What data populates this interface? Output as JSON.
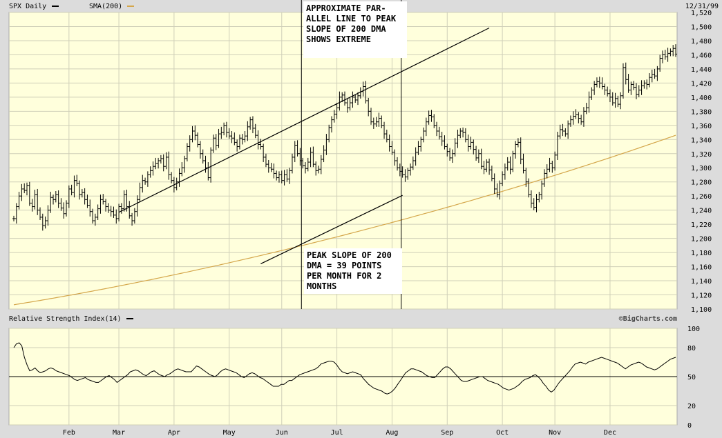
{
  "chart_data": {
    "type": "ohlc",
    "header": {
      "symbol_label": "SPX Daily",
      "sma_label": "SMA(200)",
      "date_label": "12/31/99"
    },
    "price_axis": {
      "ylim": [
        1100,
        1520
      ],
      "ticks": [
        "1,520",
        "1,500",
        "1,480",
        "1,460",
        "1,440",
        "1,420",
        "1,400",
        "1,380",
        "1,360",
        "1,340",
        "1,320",
        "1,300",
        "1,280",
        "1,260",
        "1,240",
        "1,220",
        "1,200",
        "1,180",
        "1,160",
        "1,140",
        "1,120",
        "1,100"
      ]
    },
    "x_axis": {
      "months": [
        "Feb",
        "Mar",
        "Apr",
        "May",
        "Jun",
        "Jul",
        "Aug",
        "Sep",
        "Oct",
        "Nov",
        "Dec"
      ],
      "month_day_index": [
        21,
        40,
        61,
        82,
        102,
        123,
        144,
        165,
        186,
        206,
        227
      ]
    },
    "colors": {
      "panel_bg": "#ffffdc",
      "grid": "#cfcfb8",
      "bar": "#000000",
      "sma": "#d4a64a",
      "frame": "#dcdcdc"
    },
    "series": [
      {
        "name": "SPX Daily",
        "kind": "ohlc_close",
        "values": [
          1228,
          1245,
          1260,
          1270,
          1268,
          1275,
          1250,
          1245,
          1262,
          1240,
          1230,
          1218,
          1225,
          1240,
          1258,
          1255,
          1262,
          1250,
          1243,
          1235,
          1250,
          1270,
          1265,
          1282,
          1278,
          1262,
          1265,
          1255,
          1247,
          1238,
          1225,
          1230,
          1242,
          1255,
          1252,
          1245,
          1240,
          1238,
          1233,
          1228,
          1245,
          1242,
          1262,
          1245,
          1232,
          1225,
          1238,
          1255,
          1272,
          1282,
          1280,
          1290,
          1296,
          1302,
          1306,
          1310,
          1313,
          1302,
          1315,
          1290,
          1282,
          1272,
          1280,
          1292,
          1300,
          1313,
          1330,
          1340,
          1352,
          1346,
          1333,
          1320,
          1310,
          1300,
          1286,
          1325,
          1342,
          1332,
          1348,
          1350,
          1360,
          1350,
          1345,
          1342,
          1336,
          1330,
          1342,
          1340,
          1345,
          1358,
          1368,
          1356,
          1346,
          1333,
          1330,
          1315,
          1305,
          1300,
          1298,
          1292,
          1286,
          1290,
          1282,
          1290,
          1284,
          1296,
          1315,
          1332,
          1320,
          1310,
          1303,
          1299,
          1308,
          1322,
          1305,
          1296,
          1298,
          1312,
          1325,
          1340,
          1357,
          1368,
          1376,
          1385,
          1400,
          1403,
          1392,
          1385,
          1392,
          1400,
          1396,
          1402,
          1408,
          1415,
          1395,
          1380,
          1365,
          1362,
          1365,
          1370,
          1360,
          1348,
          1340,
          1330,
          1322,
          1310,
          1300,
          1295,
          1290,
          1287,
          1296,
          1301,
          1310,
          1322,
          1330,
          1340,
          1352,
          1365,
          1374,
          1372,
          1360,
          1352,
          1344,
          1338,
          1330,
          1323,
          1314,
          1320,
          1335,
          1346,
          1352,
          1350,
          1340,
          1330,
          1336,
          1326,
          1314,
          1320,
          1302,
          1298,
          1308,
          1297,
          1285,
          1270,
          1262,
          1278,
          1290,
          1300,
          1308,
          1298,
          1320,
          1333,
          1336,
          1312,
          1296,
          1280,
          1262,
          1250,
          1244,
          1255,
          1262,
          1277,
          1292,
          1298,
          1306,
          1300,
          1318,
          1345,
          1354,
          1352,
          1348,
          1362,
          1368,
          1373,
          1375,
          1370,
          1365,
          1380,
          1385,
          1400,
          1410,
          1418,
          1422,
          1420,
          1415,
          1410,
          1405,
          1400,
          1392,
          1398,
          1390,
          1402,
          1442,
          1425,
          1410,
          1418,
          1414,
          1404,
          1410,
          1416,
          1420,
          1418,
          1428,
          1432,
          1430,
          1440,
          1455,
          1460,
          1457,
          1462,
          1465,
          1469,
          1461
        ]
      },
      {
        "name": "SMA(200)",
        "start": 1106,
        "end": 1346
      },
      {
        "name": "Relative Strength Index(14)",
        "values": [
          80,
          84,
          85,
          82,
          70,
          62,
          56,
          57,
          59,
          56,
          54,
          55,
          56,
          58,
          59,
          58,
          56,
          55,
          54,
          53,
          52,
          51,
          49,
          47,
          46,
          47,
          48,
          49,
          47,
          46,
          45,
          44,
          44,
          46,
          48,
          50,
          51,
          49,
          47,
          44,
          46,
          48,
          50,
          52,
          55,
          56,
          57,
          56,
          54,
          52,
          51,
          53,
          55,
          56,
          54,
          52,
          51,
          50,
          52,
          53,
          55,
          57,
          58,
          57,
          56,
          55,
          55,
          55,
          58,
          61,
          60,
          58,
          56,
          54,
          52,
          51,
          50,
          52,
          55,
          57,
          58,
          57,
          56,
          55,
          54,
          52,
          50,
          49,
          51,
          53,
          54,
          53,
          51,
          49,
          48,
          46,
          44,
          42,
          40,
          40,
          40,
          42,
          42,
          44,
          46,
          46,
          48,
          50,
          52,
          53,
          54,
          55,
          56,
          57,
          58,
          60,
          63,
          64,
          65,
          66,
          66,
          65,
          62,
          58,
          55,
          54,
          53,
          54,
          55,
          54,
          53,
          52,
          48,
          45,
          42,
          40,
          38,
          37,
          36,
          35,
          33,
          32,
          33,
          35,
          38,
          42,
          46,
          50,
          54,
          56,
          58,
          58,
          57,
          56,
          55,
          53,
          51,
          50,
          49,
          49,
          52,
          55,
          58,
          60,
          60,
          58,
          55,
          52,
          49,
          46,
          45,
          45,
          46,
          47,
          48,
          49,
          50,
          50,
          48,
          46,
          45,
          44,
          43,
          42,
          40,
          38,
          37,
          36,
          37,
          38,
          40,
          42,
          45,
          47,
          48,
          49,
          51,
          52,
          50,
          47,
          43,
          40,
          36,
          34,
          36,
          40,
          44,
          47,
          50,
          53,
          56,
          60,
          63,
          64,
          65,
          64,
          63,
          65,
          66,
          67,
          68,
          69,
          70,
          69,
          68,
          67,
          66,
          65,
          64,
          62,
          60,
          58,
          60,
          62,
          63,
          64,
          65,
          64,
          62,
          60,
          59,
          58,
          57,
          58,
          60,
          62,
          64,
          66,
          68,
          69,
          70
        ]
      }
    ],
    "rsi_panel": {
      "title": "Relative Strength Index(14)",
      "ylim": [
        0,
        100
      ],
      "ticks": [
        "100",
        "80",
        "50",
        "20",
        "0"
      ],
      "ref_level": 50,
      "credit": "©BigCharts.com"
    },
    "annotations": [
      {
        "id": "top",
        "lines": [
          "APPROXIMATE PAR-",
          "ALLEL LINE TO PEAK",
          "SLOPE OF 200 DMA",
          "SHOWS EXTREME"
        ]
      },
      {
        "id": "bottom",
        "lines": [
          "PEAK SLOPE OF 200",
          "DMA = 39 POINTS",
          "PER MONTH FOR 2",
          "MONTHS"
        ]
      }
    ],
    "trendlines": [
      {
        "from": [
          40,
          1237
        ],
        "to": [
          181,
          1498
        ]
      },
      {
        "from": [
          94,
          1164
        ],
        "to": [
          148,
          1261
        ]
      }
    ],
    "vertical_markers_day": [
      109.5,
      147.5
    ]
  }
}
